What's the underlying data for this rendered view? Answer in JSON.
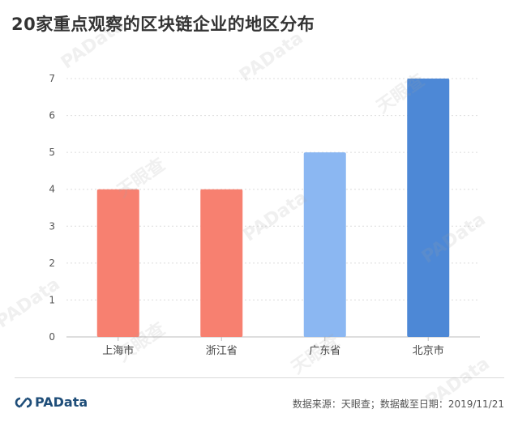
{
  "title": "20家重点观察的区块链企业的地区分布",
  "footer": {
    "brand": "PAData",
    "source": "数据来源：天眼查；数据截至日期：2019/11/21"
  },
  "watermarks": [
    "PAData",
    "天眼查"
  ],
  "colors": {
    "salmon": "#f78070",
    "light_blue": "#8bb7f2",
    "blue": "#4d88d6"
  },
  "chart_data": {
    "type": "bar",
    "categories": [
      "上海市",
      "浙江省",
      "广东省",
      "北京市"
    ],
    "values": [
      4,
      4,
      5,
      7
    ],
    "bar_colors": [
      "#f78070",
      "#f78070",
      "#8bb7f2",
      "#4d88d6"
    ],
    "yticks": [
      0,
      1,
      2,
      3,
      4,
      5,
      6,
      7
    ],
    "ylim": [
      0,
      7
    ],
    "title": "20家重点观察的区块链企业的地区分布",
    "xlabel": "",
    "ylabel": "",
    "grid": true,
    "legend": "none"
  }
}
